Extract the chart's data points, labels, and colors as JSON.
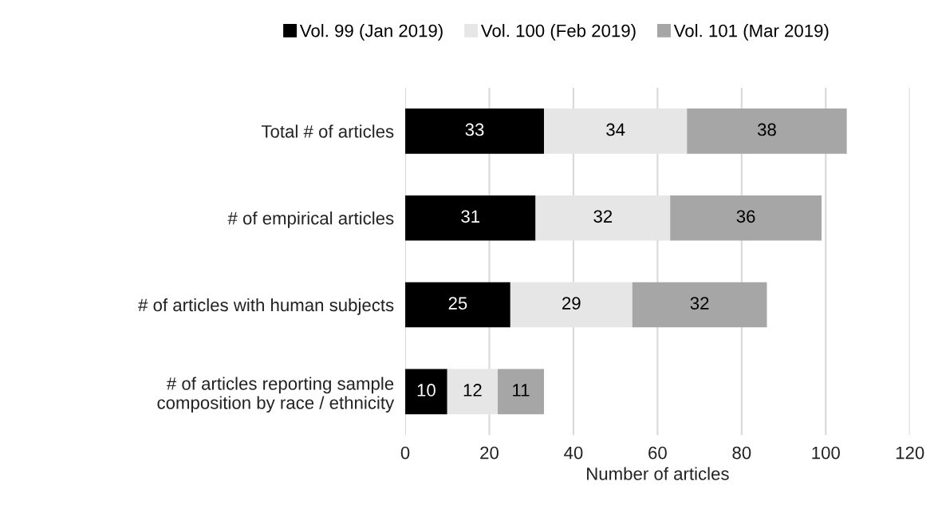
{
  "chart_data": {
    "type": "bar",
    "orientation": "horizontal",
    "stacked": true,
    "xlabel": "Number of articles",
    "categories": [
      "Total # of articles",
      "# of empirical articles",
      "# of articles with human subjects",
      "# of articles reporting sample\ncomposition by race / ethnicity"
    ],
    "series": [
      {
        "name": "Vol. 99 (Jan 2019)",
        "color": "#000000",
        "values": [
          33,
          31,
          25,
          10
        ]
      },
      {
        "name": "Vol. 100 (Feb 2019)",
        "color": "#e6e6e6",
        "values": [
          34,
          32,
          29,
          12
        ]
      },
      {
        "name": "Vol. 101 (Mar 2019)",
        "color": "#a6a6a6",
        "values": [
          38,
          36,
          32,
          11
        ]
      }
    ],
    "xlim": [
      0,
      120
    ],
    "xticks": [
      0,
      20,
      40,
      60,
      80,
      100,
      120
    ],
    "grid": "x",
    "legend": "top",
    "data_labels": true
  }
}
